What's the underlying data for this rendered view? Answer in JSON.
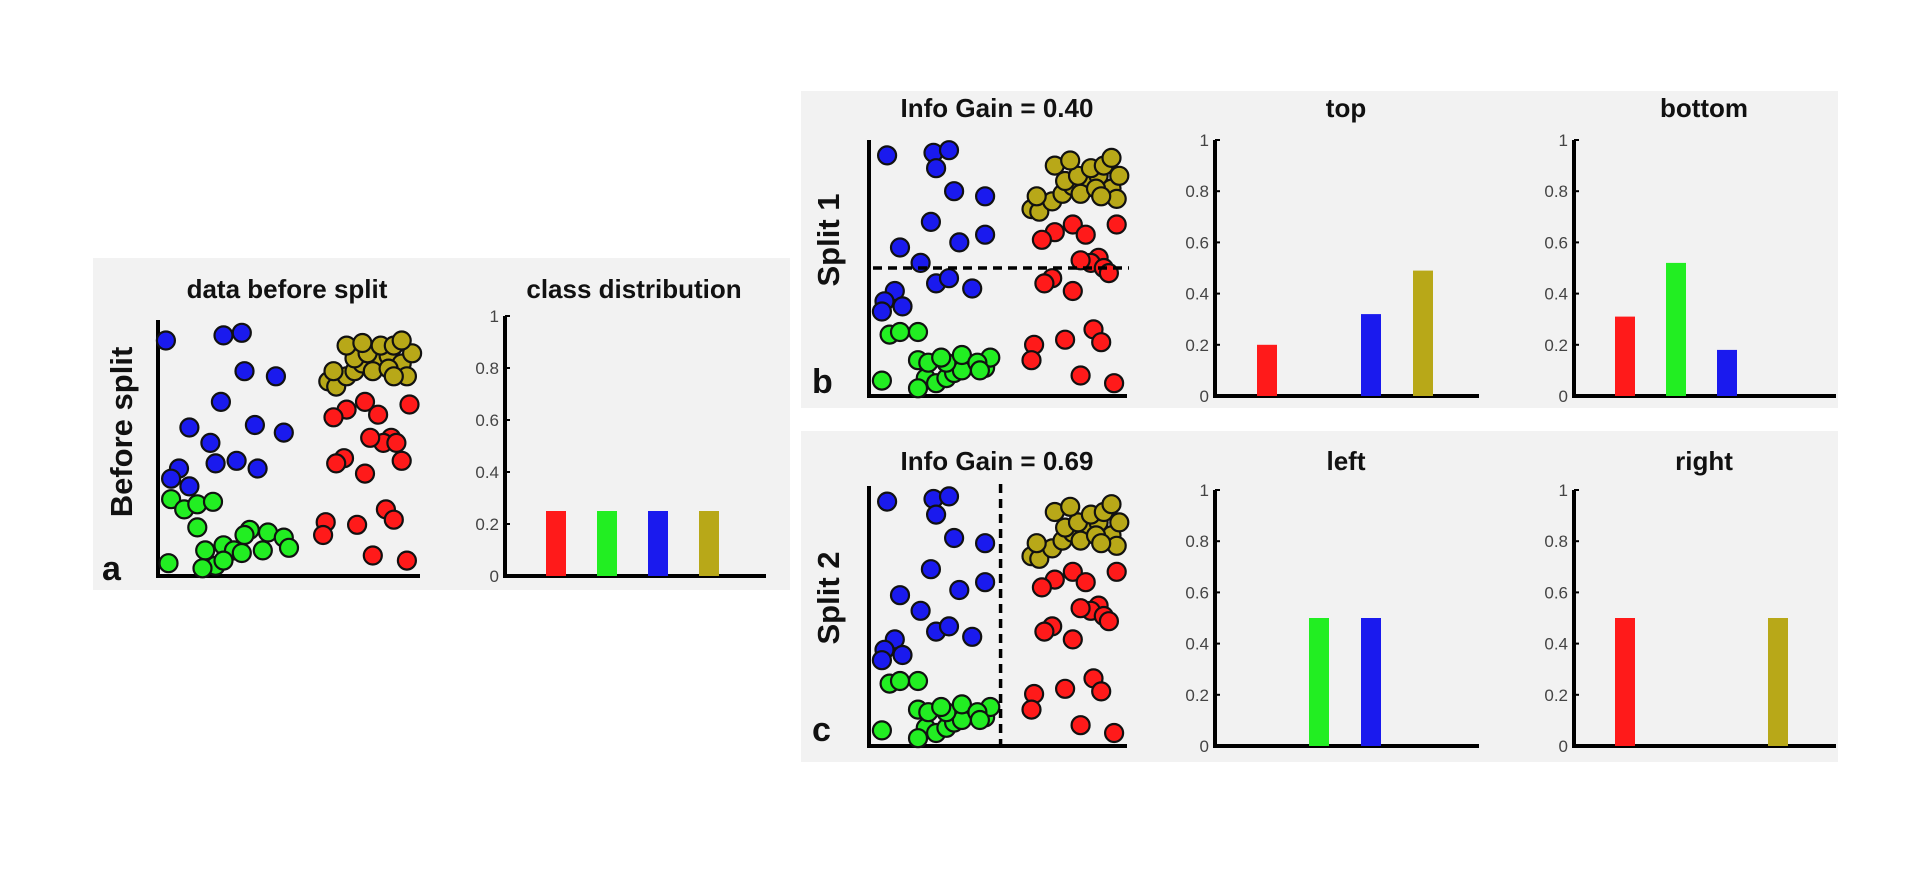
{
  "colors": {
    "red": "#ff1a1a",
    "green": "#22ee22",
    "blue": "#1a1aee",
    "olive": "#b8a818"
  },
  "panels": {
    "a": {
      "letter": "a",
      "row_label": "Before split"
    },
    "b": {
      "letter": "b",
      "row_label": "Split 1"
    },
    "c": {
      "letter": "c",
      "row_label": "Split 2"
    }
  },
  "chart_data": [
    {
      "id": "a-scatter",
      "type": "scatter",
      "title": "data before split",
      "xlim": [
        0,
        10
      ],
      "ylim": [
        0,
        10
      ],
      "grid": false,
      "divider": null,
      "series": [
        {
          "color": "blue",
          "points": [
            [
              0.3,
              9.2
            ],
            [
              2.5,
              9.4
            ],
            [
              3.2,
              9.5
            ],
            [
              3.3,
              8.0
            ],
            [
              4.5,
              7.8
            ],
            [
              2.4,
              6.8
            ],
            [
              1.2,
              5.8
            ],
            [
              3.7,
              5.9
            ],
            [
              4.8,
              5.6
            ],
            [
              2.0,
              5.2
            ],
            [
              0.8,
              4.2
            ],
            [
              0.5,
              3.8
            ],
            [
              1.2,
              3.5
            ],
            [
              2.2,
              4.4
            ],
            [
              3.0,
              4.5
            ],
            [
              3.8,
              4.2
            ]
          ]
        },
        {
          "color": "green",
          "points": [
            [
              0.5,
              3.0
            ],
            [
              1.0,
              2.6
            ],
            [
              1.5,
              2.8
            ],
            [
              2.1,
              2.9
            ],
            [
              1.5,
              1.9
            ],
            [
              3.5,
              1.8
            ],
            [
              3.3,
              1.6
            ],
            [
              4.2,
              1.7
            ],
            [
              4.8,
              1.5
            ],
            [
              1.8,
              1.0
            ],
            [
              2.5,
              1.2
            ],
            [
              2.9,
              1.0
            ],
            [
              3.2,
              0.9
            ],
            [
              4.0,
              1.0
            ],
            [
              5.0,
              1.1
            ],
            [
              0.4,
              0.5
            ],
            [
              2.2,
              0.4
            ],
            [
              1.7,
              0.3
            ],
            [
              2.5,
              0.6
            ]
          ]
        },
        {
          "color": "olive",
          "points": [
            [
              6.5,
              7.6
            ],
            [
              6.8,
              7.4
            ],
            [
              7.2,
              7.8
            ],
            [
              7.5,
              8.0
            ],
            [
              7.8,
              8.3
            ],
            [
              8.3,
              8.5
            ],
            [
              8.8,
              8.6
            ],
            [
              9.3,
              8.3
            ],
            [
              9.7,
              8.7
            ],
            [
              7.5,
              8.5
            ],
            [
              8.0,
              8.7
            ],
            [
              8.5,
              9.0
            ],
            [
              9.0,
              9.0
            ],
            [
              9.3,
              9.2
            ],
            [
              7.2,
              9.0
            ],
            [
              6.7,
              8.0
            ],
            [
              8.2,
              8.0
            ],
            [
              9.5,
              7.8
            ],
            [
              8.8,
              8.1
            ],
            [
              9.0,
              7.8
            ],
            [
              7.8,
              9.1
            ]
          ]
        },
        {
          "color": "red",
          "points": [
            [
              7.2,
              6.5
            ],
            [
              7.9,
              6.8
            ],
            [
              9.6,
              6.7
            ],
            [
              6.7,
              6.2
            ],
            [
              8.4,
              6.3
            ],
            [
              8.9,
              5.4
            ],
            [
              8.6,
              5.2
            ],
            [
              9.1,
              5.2
            ],
            [
              8.1,
              5.4
            ],
            [
              7.1,
              4.6
            ],
            [
              6.8,
              4.4
            ],
            [
              7.9,
              4.0
            ],
            [
              9.3,
              4.5
            ],
            [
              6.4,
              2.1
            ],
            [
              7.6,
              2.0
            ],
            [
              8.7,
              2.6
            ],
            [
              9.0,
              2.2
            ],
            [
              6.3,
              1.6
            ],
            [
              8.2,
              0.8
            ],
            [
              9.5,
              0.6
            ]
          ]
        }
      ]
    },
    {
      "id": "a-bar",
      "type": "bar",
      "title": "class distribution",
      "ylim": [
        0,
        1
      ],
      "yticks": [
        "0",
        "0.2",
        "0.4",
        "0.6",
        "0.8",
        "1"
      ],
      "categories": [
        "red",
        "green",
        "blue",
        "olive"
      ],
      "values": [
        0.25,
        0.25,
        0.25,
        0.25
      ]
    },
    {
      "id": "b-scatter",
      "type": "scatter",
      "title": "Info Gain = 0.40",
      "xlim": [
        0,
        10
      ],
      "ylim": [
        0,
        10
      ],
      "grid": false,
      "divider": {
        "orientation": "horizontal",
        "at": 5.0
      },
      "series": [
        {
          "color": "blue",
          "points": [
            [
              0.7,
              9.4
            ],
            [
              2.5,
              9.5
            ],
            [
              3.1,
              9.6
            ],
            [
              2.6,
              8.9
            ],
            [
              3.3,
              8.0
            ],
            [
              4.5,
              7.8
            ],
            [
              2.4,
              6.8
            ],
            [
              1.2,
              5.8
            ],
            [
              3.5,
              6.0
            ],
            [
              4.5,
              6.3
            ],
            [
              2.0,
              5.2
            ],
            [
              1.0,
              4.1
            ],
            [
              0.6,
              3.7
            ],
            [
              1.3,
              3.5
            ],
            [
              0.5,
              3.3
            ],
            [
              2.6,
              4.4
            ],
            [
              3.1,
              4.6
            ],
            [
              4.0,
              4.2
            ]
          ]
        },
        {
          "color": "green",
          "points": [
            [
              0.8,
              2.4
            ],
            [
              1.2,
              2.5
            ],
            [
              1.9,
              2.5
            ],
            [
              0.5,
              0.6
            ],
            [
              1.9,
              1.4
            ],
            [
              2.2,
              0.7
            ],
            [
              2.6,
              0.5
            ],
            [
              3.0,
              0.7
            ],
            [
              3.3,
              0.9
            ],
            [
              3.6,
              1.0
            ],
            [
              3.0,
              1.3
            ],
            [
              2.3,
              1.3
            ],
            [
              3.6,
              1.6
            ],
            [
              4.5,
              1.1
            ],
            [
              4.7,
              1.5
            ],
            [
              4.2,
              1.3
            ],
            [
              1.9,
              0.3
            ],
            [
              2.8,
              1.5
            ],
            [
              4.3,
              1.0
            ]
          ]
        },
        {
          "color": "olive",
          "points": [
            [
              6.3,
              7.3
            ],
            [
              6.6,
              7.2
            ],
            [
              7.1,
              7.6
            ],
            [
              7.5,
              7.9
            ],
            [
              7.9,
              8.2
            ],
            [
              8.4,
              8.4
            ],
            [
              8.9,
              8.6
            ],
            [
              9.4,
              8.1
            ],
            [
              9.7,
              8.6
            ],
            [
              7.6,
              8.4
            ],
            [
              8.1,
              8.6
            ],
            [
              8.6,
              8.9
            ],
            [
              9.1,
              9.0
            ],
            [
              9.4,
              9.3
            ],
            [
              7.2,
              9.0
            ],
            [
              6.5,
              7.8
            ],
            [
              8.2,
              7.9
            ],
            [
              9.6,
              7.7
            ],
            [
              8.8,
              8.1
            ],
            [
              9.0,
              7.8
            ],
            [
              7.8,
              9.2
            ]
          ]
        },
        {
          "color": "red",
          "points": [
            [
              7.2,
              6.4
            ],
            [
              7.9,
              6.7
            ],
            [
              9.6,
              6.7
            ],
            [
              6.7,
              6.1
            ],
            [
              8.4,
              6.3
            ],
            [
              8.9,
              5.4
            ],
            [
              8.6,
              5.2
            ],
            [
              9.1,
              5.0
            ],
            [
              8.2,
              5.3
            ],
            [
              7.1,
              4.6
            ],
            [
              6.8,
              4.4
            ],
            [
              7.9,
              4.1
            ],
            [
              9.3,
              4.8
            ],
            [
              6.4,
              2.0
            ],
            [
              7.6,
              2.2
            ],
            [
              8.7,
              2.6
            ],
            [
              9.0,
              2.1
            ],
            [
              6.3,
              1.4
            ],
            [
              8.2,
              0.8
            ],
            [
              9.5,
              0.5
            ]
          ]
        }
      ]
    },
    {
      "id": "b-bar-top",
      "type": "bar",
      "title": "top",
      "ylim": [
        0,
        1
      ],
      "yticks": [
        "0",
        "0.2",
        "0.4",
        "0.6",
        "0.8",
        "1"
      ],
      "categories": [
        "red",
        "green",
        "blue",
        "olive"
      ],
      "values": [
        0.2,
        0,
        0.32,
        0.49
      ]
    },
    {
      "id": "b-bar-bottom",
      "type": "bar",
      "title": "bottom",
      "ylim": [
        0,
        1
      ],
      "yticks": [
        "0",
        "0.2",
        "0.4",
        "0.6",
        "0.8",
        "1"
      ],
      "categories": [
        "red",
        "green",
        "blue",
        "olive"
      ],
      "values": [
        0.31,
        0.52,
        0.18,
        0
      ]
    },
    {
      "id": "c-scatter",
      "type": "scatter",
      "title": "Info Gain = 0.69",
      "xlim": [
        0,
        10
      ],
      "ylim": [
        0,
        10
      ],
      "grid": false,
      "divider": {
        "orientation": "vertical",
        "at": 5.1
      },
      "series": [
        {
          "color": "blue",
          "points": [
            [
              0.7,
              9.4
            ],
            [
              2.5,
              9.5
            ],
            [
              3.1,
              9.6
            ],
            [
              2.6,
              8.9
            ],
            [
              3.3,
              8.0
            ],
            [
              4.5,
              7.8
            ],
            [
              2.4,
              6.8
            ],
            [
              1.2,
              5.8
            ],
            [
              3.5,
              6.0
            ],
            [
              4.5,
              6.3
            ],
            [
              2.0,
              5.2
            ],
            [
              1.0,
              4.1
            ],
            [
              0.6,
              3.7
            ],
            [
              1.3,
              3.5
            ],
            [
              0.5,
              3.3
            ],
            [
              2.6,
              4.4
            ],
            [
              3.1,
              4.6
            ],
            [
              4.0,
              4.2
            ]
          ]
        },
        {
          "color": "green",
          "points": [
            [
              0.8,
              2.4
            ],
            [
              1.2,
              2.5
            ],
            [
              1.9,
              2.5
            ],
            [
              0.5,
              0.6
            ],
            [
              1.9,
              1.4
            ],
            [
              2.2,
              0.7
            ],
            [
              2.6,
              0.5
            ],
            [
              3.0,
              0.7
            ],
            [
              3.3,
              0.9
            ],
            [
              3.6,
              1.0
            ],
            [
              3.0,
              1.3
            ],
            [
              2.3,
              1.3
            ],
            [
              3.6,
              1.6
            ],
            [
              4.5,
              1.1
            ],
            [
              4.7,
              1.5
            ],
            [
              4.2,
              1.3
            ],
            [
              1.9,
              0.3
            ],
            [
              2.8,
              1.5
            ],
            [
              4.3,
              1.0
            ]
          ]
        },
        {
          "color": "olive",
          "points": [
            [
              6.3,
              7.3
            ],
            [
              6.6,
              7.2
            ],
            [
              7.1,
              7.6
            ],
            [
              7.5,
              7.9
            ],
            [
              7.9,
              8.2
            ],
            [
              8.4,
              8.4
            ],
            [
              8.9,
              8.6
            ],
            [
              9.4,
              8.1
            ],
            [
              9.7,
              8.6
            ],
            [
              7.6,
              8.4
            ],
            [
              8.1,
              8.6
            ],
            [
              8.6,
              8.9
            ],
            [
              9.1,
              9.0
            ],
            [
              9.4,
              9.3
            ],
            [
              7.2,
              9.0
            ],
            [
              6.5,
              7.8
            ],
            [
              8.2,
              7.9
            ],
            [
              9.6,
              7.7
            ],
            [
              8.8,
              8.1
            ],
            [
              9.0,
              7.8
            ],
            [
              7.8,
              9.2
            ]
          ]
        },
        {
          "color": "red",
          "points": [
            [
              7.2,
              6.4
            ],
            [
              7.9,
              6.7
            ],
            [
              9.6,
              6.7
            ],
            [
              6.7,
              6.1
            ],
            [
              8.4,
              6.3
            ],
            [
              8.9,
              5.4
            ],
            [
              8.6,
              5.2
            ],
            [
              9.1,
              5.0
            ],
            [
              8.2,
              5.3
            ],
            [
              7.1,
              4.6
            ],
            [
              6.8,
              4.4
            ],
            [
              7.9,
              4.1
            ],
            [
              9.3,
              4.8
            ],
            [
              6.4,
              2.0
            ],
            [
              7.6,
              2.2
            ],
            [
              8.7,
              2.6
            ],
            [
              9.0,
              2.1
            ],
            [
              6.3,
              1.4
            ],
            [
              8.2,
              0.8
            ],
            [
              9.5,
              0.5
            ]
          ]
        }
      ]
    },
    {
      "id": "c-bar-left",
      "type": "bar",
      "title": "left",
      "ylim": [
        0,
        1
      ],
      "yticks": [
        "0",
        "0.2",
        "0.4",
        "0.6",
        "0.8",
        "1"
      ],
      "categories": [
        "red",
        "green",
        "blue",
        "olive"
      ],
      "values": [
        0,
        0.5,
        0.5,
        0
      ]
    },
    {
      "id": "c-bar-right",
      "type": "bar",
      "title": "right",
      "ylim": [
        0,
        1
      ],
      "yticks": [
        "0",
        "0.2",
        "0.4",
        "0.6",
        "0.8",
        "1"
      ],
      "categories": [
        "red",
        "green",
        "blue",
        "olive"
      ],
      "values": [
        0.5,
        0,
        0,
        0.5
      ]
    }
  ]
}
